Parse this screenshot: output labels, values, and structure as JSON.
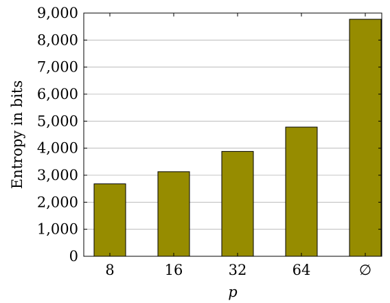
{
  "chart_data": {
    "type": "bar",
    "categories": [
      "8",
      "16",
      "32",
      "64",
      "∅"
    ],
    "values": [
      2680,
      3130,
      3880,
      4780,
      8770
    ],
    "xlabel": "p",
    "ylabel": "Entropy in bits",
    "ylim": [
      0,
      9000
    ],
    "yticks": [
      0,
      1000,
      2000,
      3000,
      4000,
      5000,
      6000,
      7000,
      8000,
      9000
    ],
    "ytick_labels": [
      "0",
      "1,000",
      "2,000",
      "3,000",
      "4,000",
      "5,000",
      "6,000",
      "7,000",
      "8,000",
      "9,000"
    ],
    "grid": "horizontal",
    "bar_color": "#968c00"
  }
}
